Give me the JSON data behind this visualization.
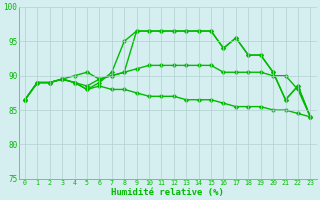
{
  "xlabel": "Humidité relative (%)",
  "xlim": [
    -0.5,
    23.5
  ],
  "ylim": [
    75,
    100
  ],
  "yticks": [
    75,
    80,
    85,
    90,
    95,
    100
  ],
  "xticks": [
    0,
    1,
    2,
    3,
    4,
    5,
    6,
    7,
    8,
    9,
    10,
    11,
    12,
    13,
    14,
    15,
    16,
    17,
    18,
    19,
    20,
    21,
    22,
    23
  ],
  "bg_color": "#d5eef0",
  "grid_color": "#b0d0d0",
  "line_color": "#00bb00",
  "line_width": 1.0,
  "marker": "D",
  "marker_size": 2.2,
  "series": [
    [
      86.5,
      89.0,
      89.0,
      89.5,
      89.0,
      88.0,
      89.0,
      90.5,
      95.0,
      96.5,
      96.5,
      96.5,
      96.5,
      96.5,
      96.5,
      96.5,
      94.0,
      95.5,
      93.0,
      93.0,
      90.5,
      86.5,
      88.5,
      84.0
    ],
    [
      86.5,
      89.0,
      89.0,
      89.5,
      90.0,
      90.5,
      89.5,
      90.0,
      90.5,
      96.5,
      96.5,
      96.5,
      96.5,
      96.5,
      96.5,
      96.5,
      94.0,
      95.5,
      93.0,
      93.0,
      90.5,
      86.5,
      88.5,
      84.0
    ],
    [
      86.5,
      89.0,
      89.0,
      89.5,
      89.0,
      88.5,
      89.5,
      90.0,
      90.5,
      91.0,
      91.5,
      91.5,
      91.5,
      91.5,
      91.5,
      91.5,
      90.5,
      90.5,
      90.5,
      90.5,
      90.0,
      90.0,
      88.0,
      84.0
    ],
    [
      86.5,
      89.0,
      89.0,
      89.5,
      89.0,
      88.0,
      88.5,
      88.0,
      88.0,
      87.5,
      87.0,
      87.0,
      87.0,
      86.5,
      86.5,
      86.5,
      86.0,
      85.5,
      85.5,
      85.5,
      85.0,
      85.0,
      84.5,
      84.0
    ]
  ]
}
